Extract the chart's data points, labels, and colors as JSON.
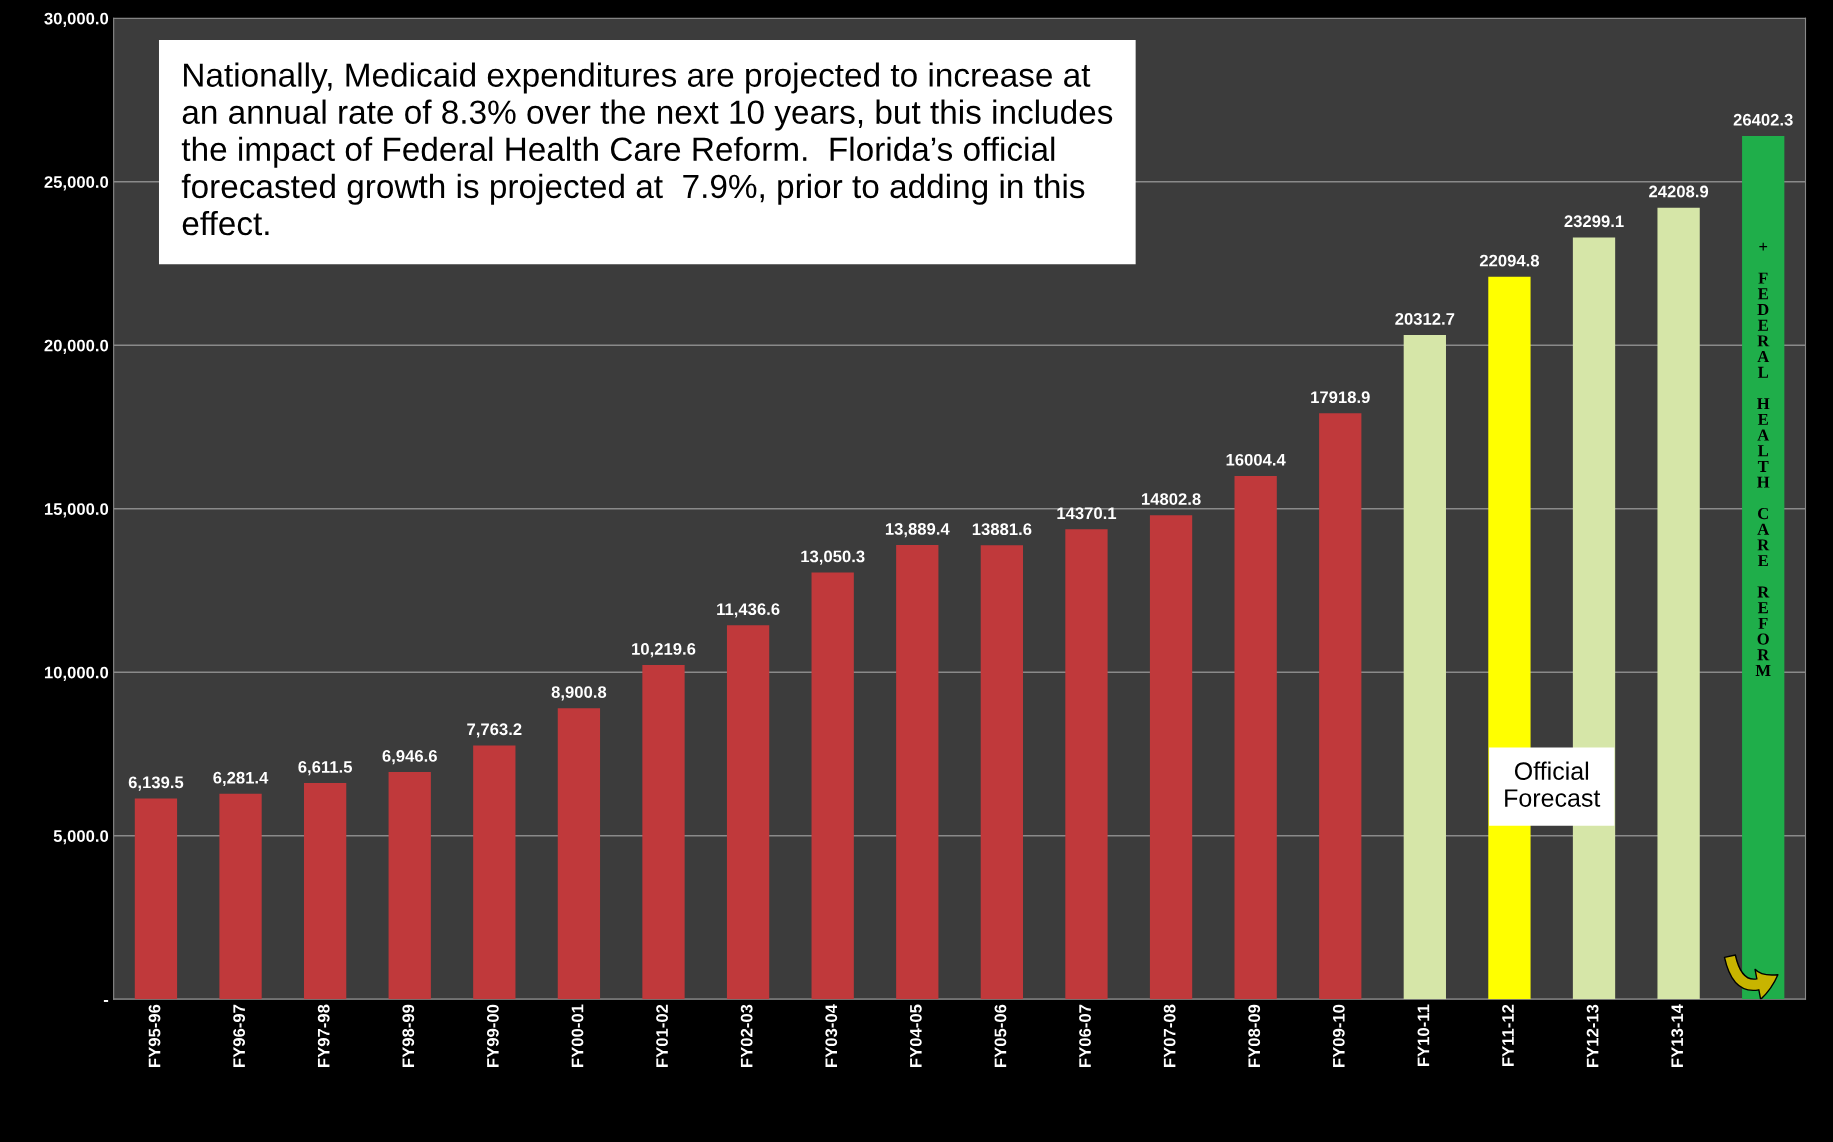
{
  "chart_data": {
    "type": "bar",
    "categories": [
      "FY95-96",
      "FY96-97",
      "FY97-98",
      "FY98-99",
      "FY99-00",
      "FY00-01",
      "FY01-02",
      "FY02-03",
      "FY03-04",
      "FY04-05",
      "FY05-06",
      "FY06-07",
      "FY07-08",
      "FY08-09",
      "FY09-10",
      "FY10-11",
      "FY11-12",
      "FY12-13",
      "FY13-14",
      null
    ],
    "values": [
      6139.5,
      6281.4,
      6611.5,
      6946.6,
      7763.2,
      8900.8,
      10219.6,
      11436.6,
      13050.3,
      13889.4,
      13881.6,
      14370.1,
      14802.8,
      16004.4,
      17918.9,
      20312.7,
      22094.8,
      23299.1,
      24208.9,
      26402.3
    ],
    "value_labels": [
      "6,139.5",
      "6,281.4",
      "6,611.5",
      "6,946.6",
      "7,763.2",
      "8,900.8",
      "10,219.6",
      "11,436.6",
      "13,050.3",
      "13,889.4",
      "13881.6",
      "14370.1",
      "14802.8",
      "16004.4",
      "17918.9",
      "20312.7",
      "22094.8",
      "23299.1",
      "24208.9",
      "26402.3"
    ],
    "colors": [
      "#c0393b",
      "#c0393b",
      "#c0393b",
      "#c0393b",
      "#c0393b",
      "#c0393b",
      "#c0393b",
      "#c0393b",
      "#c0393b",
      "#c0393b",
      "#c0393b",
      "#c0393b",
      "#c0393b",
      "#c0393b",
      "#c0393b",
      "#d6e6a8",
      "#ffff00",
      "#d6e6a8",
      "#d6e6a8",
      "#1fae4a"
    ],
    "ylim": [
      0,
      30000
    ],
    "yticks": [
      {
        "value": 0,
        "label": "-"
      },
      {
        "value": 5000,
        "label": "5,000.0"
      },
      {
        "value": 10000,
        "label": "10,000.0"
      },
      {
        "value": 15000,
        "label": "15,000.0"
      },
      {
        "value": 20000,
        "label": "20,000.0"
      },
      {
        "value": 25000,
        "label": "25,000.0"
      },
      {
        "value": 30000,
        "label": "30,000.0"
      }
    ],
    "grid": "y",
    "annotations": [
      "Nationally, Medicaid expenditures are projected to increase at an annual rate of 8.3% over the next 10 years, but this includes the impact of Federal Health Care Reform.  Florida’s official forecasted growth is projected at  7.9%, prior to adding in this effect.",
      "Official\nForecast",
      "+ FEDERAL HEALTH CARE REFORM"
    ]
  }
}
